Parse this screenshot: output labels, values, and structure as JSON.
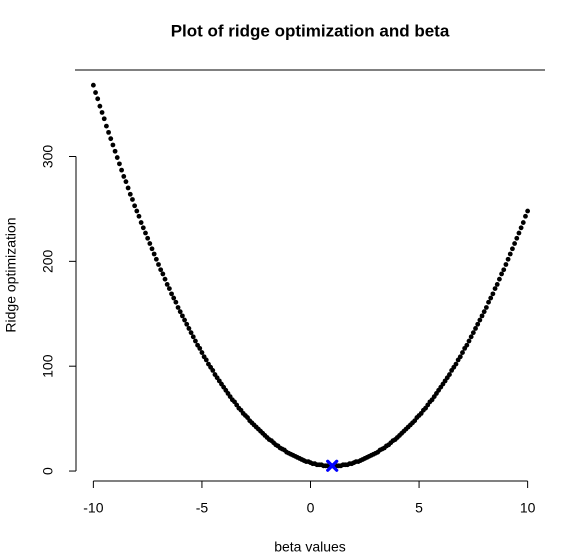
{
  "chart_data": {
    "type": "scatter",
    "title": "Plot of ridge optimization and beta",
    "x_label": "beta values",
    "y_label": "Ridge optimization",
    "xlim": [
      -10.8,
      10.8
    ],
    "ylim": [
      -9.5,
      382.5
    ],
    "xticks": [
      -10,
      -5,
      0,
      5,
      10
    ],
    "yticks": [
      0,
      100,
      200,
      300
    ],
    "series": [
      {
        "color": "#000000",
        "marker": "circle",
        "x": [
          -10,
          -9.9,
          -9.8,
          -9.7,
          -9.6,
          -9.5,
          -9.4,
          -9.3,
          -9.2,
          -9.1,
          -9,
          -8.9,
          -8.8,
          -8.7,
          -8.6,
          -8.5,
          -8.4,
          -8.3,
          -8.2,
          -8.1,
          -8,
          -7.9,
          -7.8,
          -7.7,
          -7.6,
          -7.5,
          -7.4,
          -7.3,
          -7.2,
          -7.1,
          -7,
          -6.9,
          -6.8,
          -6.7,
          -6.6,
          -6.5,
          -6.4,
          -6.3,
          -6.2,
          -6.1,
          -6,
          -5.9,
          -5.8,
          -5.7,
          -5.6,
          -5.5,
          -5.4,
          -5.3,
          -5.2,
          -5.1,
          -5,
          -4.9,
          -4.8,
          -4.7,
          -4.6,
          -4.5,
          -4.4,
          -4.3,
          -4.2,
          -4.1,
          -4,
          -3.9,
          -3.8,
          -3.7,
          -3.6,
          -3.5,
          -3.4,
          -3.3,
          -3.2,
          -3.1,
          -3,
          -2.9,
          -2.8,
          -2.7,
          -2.6,
          -2.5,
          -2.4,
          -2.3,
          -2.2,
          -2.1,
          -2,
          -1.9,
          -1.8,
          -1.7,
          -1.6,
          -1.5,
          -1.4,
          -1.3,
          -1.2,
          -1.1,
          -1,
          -0.9,
          -0.8,
          -0.7,
          -0.6,
          -0.5,
          -0.4,
          -0.3,
          -0.2,
          -0.1,
          0,
          0.1,
          0.2,
          0.3,
          0.4,
          0.5,
          0.6,
          0.7,
          0.8,
          0.9,
          1,
          1.1,
          1.2,
          1.3,
          1.4,
          1.5,
          1.6,
          1.7,
          1.8,
          1.9,
          2,
          2.1,
          2.2,
          2.3,
          2.4,
          2.5,
          2.6,
          2.7,
          2.8,
          2.9,
          3,
          3.1,
          3.2,
          3.3,
          3.4,
          3.5,
          3.6,
          3.7,
          3.8,
          3.9,
          4,
          4.1,
          4.2,
          4.3,
          4.4,
          4.5,
          4.6,
          4.7,
          4.8,
          4.9,
          5,
          5.1,
          5.2,
          5.3,
          5.4,
          5.5,
          5.6,
          5.7,
          5.8,
          5.9,
          6,
          6.1,
          6.2,
          6.3,
          6.4,
          6.5,
          6.6,
          6.7,
          6.8,
          6.9,
          7,
          7.1,
          7.2,
          7.3,
          7.4,
          7.5,
          7.6,
          7.7,
          7.8,
          7.9,
          8,
          8.1,
          8.2,
          8.3,
          8.4,
          8.5,
          8.6,
          8.7,
          8.8,
          8.9,
          9,
          9.1,
          9.2,
          9.3,
          9.4,
          9.5,
          9.6,
          9.7,
          9.8,
          9.9,
          10
        ],
        "values": [
          368,
          361,
          355,
          348,
          342,
          336,
          329,
          323,
          317,
          311,
          305,
          299,
          293,
          287,
          281,
          276,
          270,
          264,
          259,
          253,
          248,
          243,
          237,
          232,
          227,
          222,
          217,
          212,
          207,
          202,
          197,
          192,
          188,
          183,
          178,
          174,
          169,
          165,
          161,
          156,
          152,
          148,
          144,
          140,
          136,
          132,
          128,
          124,
          120,
          117,
          113,
          109,
          106,
          102,
          99,
          96,
          92,
          89,
          86,
          83,
          80,
          77,
          74,
          71,
          68,
          66,
          63,
          60,
          58,
          55,
          53,
          51,
          48,
          46,
          44,
          42,
          40,
          38,
          36,
          34,
          32,
          30,
          29,
          27,
          25,
          24,
          22,
          21,
          20,
          18,
          17,
          16,
          15,
          14,
          13,
          12,
          11,
          10,
          9,
          9,
          8,
          7,
          7,
          6,
          6,
          6,
          5,
          5,
          5,
          5,
          5,
          5,
          5,
          5,
          5,
          6,
          6,
          6,
          7,
          7,
          8,
          9,
          9,
          10,
          11,
          12,
          13,
          14,
          15,
          16,
          17,
          18,
          20,
          21,
          22,
          24,
          25,
          27,
          29,
          30,
          32,
          34,
          36,
          38,
          40,
          42,
          44,
          46,
          48,
          51,
          53,
          55,
          58,
          60,
          63,
          66,
          68,
          71,
          74,
          77,
          80,
          83,
          86,
          89,
          92,
          96,
          99,
          102,
          106,
          109,
          113,
          117,
          120,
          124,
          128,
          132,
          136,
          140,
          144,
          148,
          152,
          156,
          161,
          165,
          169,
          174,
          178,
          183,
          188,
          192,
          197,
          202,
          207,
          212,
          217,
          222,
          227,
          232,
          237,
          243,
          248
        ]
      },
      {
        "color": "#0000ff",
        "marker": "x",
        "x": [
          1
        ],
        "values": [
          5
        ]
      }
    ]
  }
}
